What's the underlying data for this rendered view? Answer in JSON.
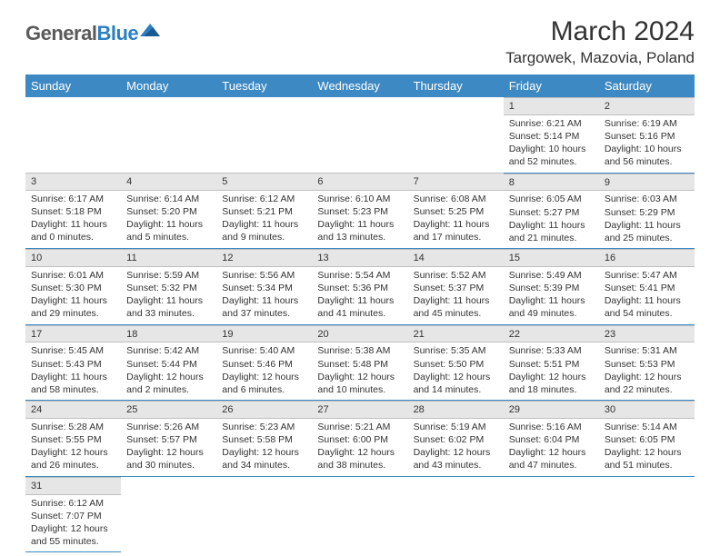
{
  "logo": {
    "text1": "General",
    "text2": "Blue"
  },
  "title": "March 2024",
  "location": "Targowek, Mazovia, Poland",
  "colors": {
    "header_bg": "#3d89c3",
    "daynum_bg": "#e6e6e6",
    "row_border": "#3d89c3"
  },
  "days_of_week": [
    "Sunday",
    "Monday",
    "Tuesday",
    "Wednesday",
    "Thursday",
    "Friday",
    "Saturday"
  ],
  "weeks": [
    [
      null,
      null,
      null,
      null,
      null,
      {
        "n": "1",
        "sunrise": "6:21 AM",
        "sunset": "5:14 PM",
        "day_h": 10,
        "day_m": 52
      },
      {
        "n": "2",
        "sunrise": "6:19 AM",
        "sunset": "5:16 PM",
        "day_h": 10,
        "day_m": 56
      }
    ],
    [
      {
        "n": "3",
        "sunrise": "6:17 AM",
        "sunset": "5:18 PM",
        "day_h": 11,
        "day_m": 0
      },
      {
        "n": "4",
        "sunrise": "6:14 AM",
        "sunset": "5:20 PM",
        "day_h": 11,
        "day_m": 5
      },
      {
        "n": "5",
        "sunrise": "6:12 AM",
        "sunset": "5:21 PM",
        "day_h": 11,
        "day_m": 9
      },
      {
        "n": "6",
        "sunrise": "6:10 AM",
        "sunset": "5:23 PM",
        "day_h": 11,
        "day_m": 13
      },
      {
        "n": "7",
        "sunrise": "6:08 AM",
        "sunset": "5:25 PM",
        "day_h": 11,
        "day_m": 17
      },
      {
        "n": "8",
        "sunrise": "6:05 AM",
        "sunset": "5:27 PM",
        "day_h": 11,
        "day_m": 21
      },
      {
        "n": "9",
        "sunrise": "6:03 AM",
        "sunset": "5:29 PM",
        "day_h": 11,
        "day_m": 25
      }
    ],
    [
      {
        "n": "10",
        "sunrise": "6:01 AM",
        "sunset": "5:30 PM",
        "day_h": 11,
        "day_m": 29
      },
      {
        "n": "11",
        "sunrise": "5:59 AM",
        "sunset": "5:32 PM",
        "day_h": 11,
        "day_m": 33
      },
      {
        "n": "12",
        "sunrise": "5:56 AM",
        "sunset": "5:34 PM",
        "day_h": 11,
        "day_m": 37
      },
      {
        "n": "13",
        "sunrise": "5:54 AM",
        "sunset": "5:36 PM",
        "day_h": 11,
        "day_m": 41
      },
      {
        "n": "14",
        "sunrise": "5:52 AM",
        "sunset": "5:37 PM",
        "day_h": 11,
        "day_m": 45
      },
      {
        "n": "15",
        "sunrise": "5:49 AM",
        "sunset": "5:39 PM",
        "day_h": 11,
        "day_m": 49
      },
      {
        "n": "16",
        "sunrise": "5:47 AM",
        "sunset": "5:41 PM",
        "day_h": 11,
        "day_m": 54
      }
    ],
    [
      {
        "n": "17",
        "sunrise": "5:45 AM",
        "sunset": "5:43 PM",
        "day_h": 11,
        "day_m": 58
      },
      {
        "n": "18",
        "sunrise": "5:42 AM",
        "sunset": "5:44 PM",
        "day_h": 12,
        "day_m": 2
      },
      {
        "n": "19",
        "sunrise": "5:40 AM",
        "sunset": "5:46 PM",
        "day_h": 12,
        "day_m": 6
      },
      {
        "n": "20",
        "sunrise": "5:38 AM",
        "sunset": "5:48 PM",
        "day_h": 12,
        "day_m": 10
      },
      {
        "n": "21",
        "sunrise": "5:35 AM",
        "sunset": "5:50 PM",
        "day_h": 12,
        "day_m": 14
      },
      {
        "n": "22",
        "sunrise": "5:33 AM",
        "sunset": "5:51 PM",
        "day_h": 12,
        "day_m": 18
      },
      {
        "n": "23",
        "sunrise": "5:31 AM",
        "sunset": "5:53 PM",
        "day_h": 12,
        "day_m": 22
      }
    ],
    [
      {
        "n": "24",
        "sunrise": "5:28 AM",
        "sunset": "5:55 PM",
        "day_h": 12,
        "day_m": 26
      },
      {
        "n": "25",
        "sunrise": "5:26 AM",
        "sunset": "5:57 PM",
        "day_h": 12,
        "day_m": 30
      },
      {
        "n": "26",
        "sunrise": "5:23 AM",
        "sunset": "5:58 PM",
        "day_h": 12,
        "day_m": 34
      },
      {
        "n": "27",
        "sunrise": "5:21 AM",
        "sunset": "6:00 PM",
        "day_h": 12,
        "day_m": 38
      },
      {
        "n": "28",
        "sunrise": "5:19 AM",
        "sunset": "6:02 PM",
        "day_h": 12,
        "day_m": 43
      },
      {
        "n": "29",
        "sunrise": "5:16 AM",
        "sunset": "6:04 PM",
        "day_h": 12,
        "day_m": 47
      },
      {
        "n": "30",
        "sunrise": "5:14 AM",
        "sunset": "6:05 PM",
        "day_h": 12,
        "day_m": 51
      }
    ],
    [
      {
        "n": "31",
        "sunrise": "6:12 AM",
        "sunset": "7:07 PM",
        "day_h": 12,
        "day_m": 55
      },
      null,
      null,
      null,
      null,
      null,
      null
    ]
  ]
}
